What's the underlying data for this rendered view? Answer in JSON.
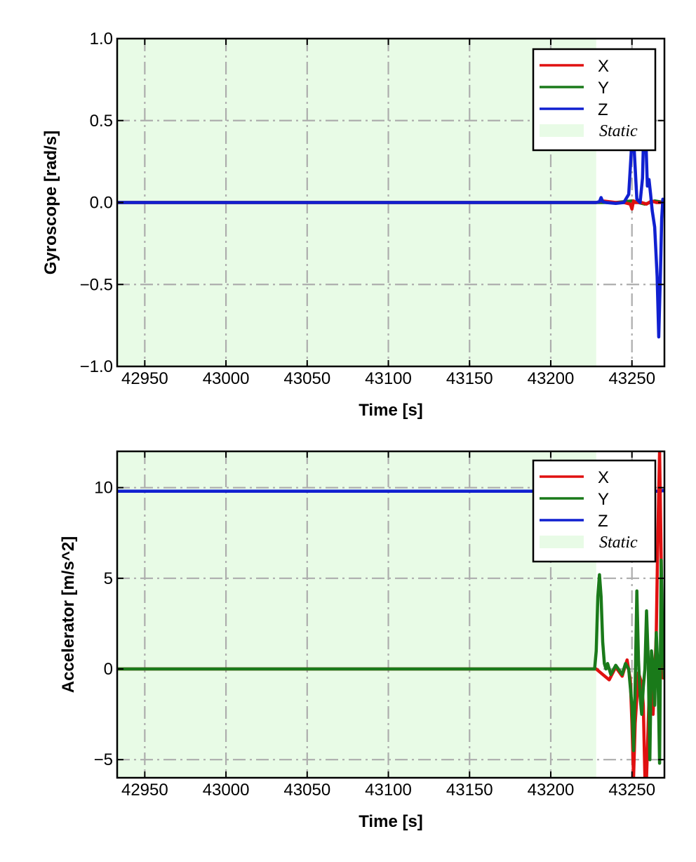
{
  "chart_data": [
    {
      "type": "line",
      "xlabel": "Time [s]",
      "ylabel": "Gyroscope [rad/s]",
      "xlim": [
        42933,
        43270
      ],
      "ylim": [
        -1.0,
        1.0
      ],
      "xticks": [
        42950,
        43000,
        43050,
        43100,
        43150,
        43200,
        43250
      ],
      "xtick_labels": [
        "42950",
        "43000",
        "43050",
        "43100",
        "43150",
        "43200",
        "43250"
      ],
      "yticks": [
        1.0,
        0.5,
        0.0,
        -0.5,
        -1.0
      ],
      "ytick_labels": [
        "1.0",
        "0.5",
        "0.0",
        "−0.5",
        "−1.0"
      ],
      "grid": true,
      "legend_position": "top-right",
      "static_region": {
        "label": "Static",
        "x_start": 42933,
        "x_end": 43228,
        "color": "#e8fbe6"
      },
      "series": [
        {
          "name": "X",
          "color": "#e01010",
          "x": [
            42933,
            43228,
            43232,
            43240,
            43245,
            43249,
            43250,
            43251,
            43252,
            43256,
            43259,
            43262,
            43265,
            43268,
            43270
          ],
          "y": [
            0.0,
            0.0,
            0.01,
            0.0,
            0.0,
            -0.01,
            -0.04,
            0.01,
            0.0,
            0.0,
            -0.01,
            0.01,
            0.0,
            0.0,
            0.0
          ]
        },
        {
          "name": "Y",
          "color": "#1a7a1a",
          "x": [
            42933,
            43228,
            43240,
            43250,
            43258,
            43264,
            43270
          ],
          "y": [
            0.0,
            0.0,
            0.0,
            0.01,
            -0.01,
            0.01,
            0.0
          ]
        },
        {
          "name": "Z",
          "color": "#1020d0",
          "x": [
            42933,
            43228,
            43230,
            43231,
            43232,
            43234,
            43240,
            43245,
            43248,
            43249.5,
            43250.5,
            43251.5,
            43253,
            43255,
            43256.5,
            43257.5,
            43258.5,
            43259.5,
            43260.5,
            43261.5,
            43262.5,
            43264,
            43265.5,
            43266.5,
            43267.5,
            43268.3,
            43269,
            43270
          ],
          "y": [
            0.0,
            0.0,
            0.005,
            0.03,
            0.005,
            0.0,
            -0.005,
            0.0,
            0.05,
            0.3,
            0.55,
            0.3,
            0.02,
            0.0,
            0.15,
            0.55,
            0.4,
            0.1,
            0.14,
            0.05,
            -0.05,
            -0.15,
            -0.45,
            -0.82,
            -0.45,
            -0.1,
            0.02,
            0.0
          ]
        }
      ]
    },
    {
      "type": "line",
      "xlabel": "Time [s]",
      "ylabel": "Accelerator [m/s^2]",
      "xlim": [
        42933,
        43270
      ],
      "ylim": [
        -6.0,
        12.0
      ],
      "xticks": [
        42950,
        43000,
        43050,
        43100,
        43150,
        43200,
        43250
      ],
      "xtick_labels": [
        "42950",
        "43000",
        "43050",
        "43100",
        "43150",
        "43200",
        "43250"
      ],
      "yticks": [
        10,
        5,
        0,
        -5
      ],
      "ytick_labels": [
        "10",
        "5",
        "0",
        "−5"
      ],
      "grid": true,
      "legend_position": "top-right",
      "static_region": {
        "label": "Static",
        "x_start": 42933,
        "x_end": 43228,
        "color": "#e8fbe6"
      },
      "series": [
        {
          "name": "X",
          "color": "#e01010",
          "x": [
            42933,
            43228,
            43232,
            43236,
            43240,
            43244,
            43247,
            43249,
            43250,
            43251,
            43252,
            43254,
            43256,
            43257,
            43258,
            43259,
            43260,
            43261,
            43262,
            43263,
            43264,
            43265,
            43266,
            43267,
            43268,
            43268.6,
            43269.2,
            43270
          ],
          "y": [
            0.0,
            0.0,
            -0.3,
            -0.6,
            0.1,
            -0.4,
            0.5,
            -0.6,
            -3.0,
            -6.0,
            -3.0,
            -0.2,
            -0.8,
            -2.0,
            -6.0,
            -6.0,
            -3.0,
            -0.3,
            -1.0,
            -2.5,
            -0.5,
            2.0,
            7.5,
            12.0,
            6.0,
            0.0,
            -0.5,
            -0.3
          ]
        },
        {
          "name": "Y",
          "color": "#1a7a1a",
          "x": [
            42933,
            43227,
            43228,
            43229,
            43230,
            43231,
            43232,
            43233,
            43234,
            43235,
            43237,
            43240,
            43244,
            43246,
            43248,
            43250,
            43251,
            43252,
            43253,
            43254,
            43255,
            43256,
            43257,
            43258,
            43259,
            43260,
            43261,
            43262,
            43263,
            43264,
            43265,
            43266,
            43267,
            43268,
            43269,
            43270
          ],
          "y": [
            0.0,
            0.0,
            1.0,
            4.0,
            5.2,
            4.0,
            1.5,
            0.3,
            0.0,
            0.3,
            -0.3,
            0.2,
            -0.3,
            0.3,
            0.0,
            -2.0,
            -4.5,
            -1.0,
            4.3,
            0.5,
            -1.5,
            -2.5,
            -1.0,
            0.0,
            3.2,
            0.5,
            -5.0,
            1.0,
            0.2,
            -2.0,
            2.0,
            0.0,
            -5.2,
            6.0,
            1.0,
            -0.5
          ]
        },
        {
          "name": "Z",
          "color": "#1020d0",
          "x": [
            42933,
            43228,
            43268,
            43269,
            43270
          ],
          "y": [
            9.8,
            9.8,
            9.8,
            9.85,
            9.8
          ]
        }
      ]
    }
  ]
}
